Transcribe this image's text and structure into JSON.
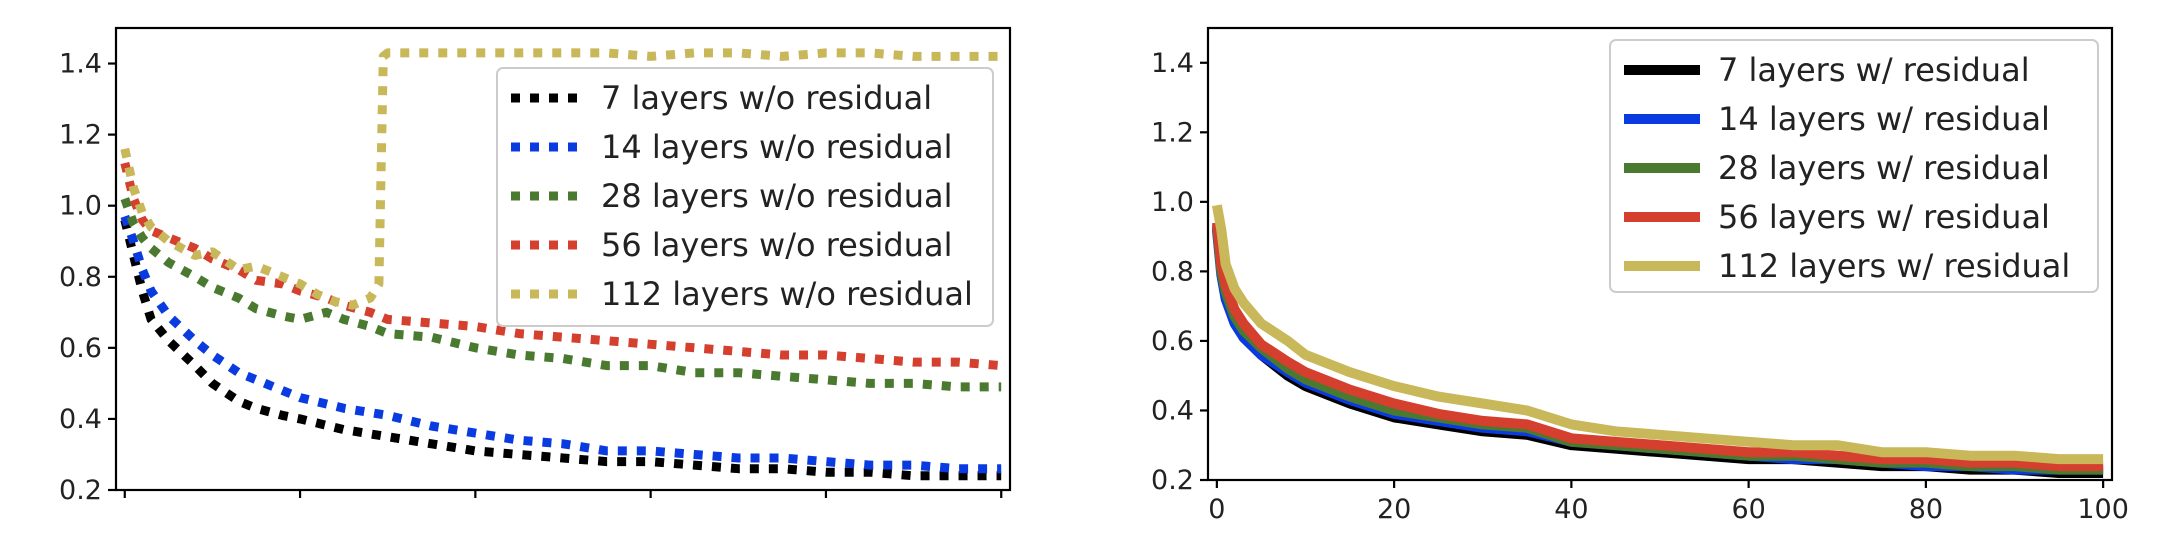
{
  "chart_data": [
    {
      "type": "line",
      "panel": "left",
      "title": "",
      "xlabel": "",
      "ylabel": "",
      "xlim": [
        -1,
        101
      ],
      "ylim": [
        0.2,
        1.5
      ],
      "yticks": [
        "0.2",
        "0.4",
        "0.6",
        "0.8",
        "1.0",
        "1.2",
        "1.4"
      ],
      "xticks_labeled": false,
      "legend_position": "upper-right",
      "line_style": "dotted",
      "series": [
        {
          "name": "7 layers w/o residual",
          "color": "#000000",
          "x": [
            0,
            1,
            2,
            3,
            5,
            8,
            10,
            13,
            15,
            18,
            20,
            25,
            30,
            35,
            40,
            45,
            50,
            55,
            60,
            65,
            70,
            75,
            80,
            85,
            90,
            95,
            100
          ],
          "y": [
            0.96,
            0.86,
            0.76,
            0.68,
            0.62,
            0.55,
            0.5,
            0.45,
            0.43,
            0.41,
            0.4,
            0.37,
            0.35,
            0.33,
            0.31,
            0.3,
            0.29,
            0.28,
            0.28,
            0.27,
            0.26,
            0.26,
            0.25,
            0.25,
            0.24,
            0.24,
            0.24
          ]
        },
        {
          "name": "14 layers w/o residual",
          "color": "#0a3be0",
          "x": [
            0,
            1,
            2,
            3,
            5,
            8,
            10,
            13,
            15,
            18,
            20,
            25,
            30,
            35,
            40,
            45,
            50,
            55,
            60,
            65,
            70,
            75,
            80,
            85,
            90,
            95,
            100
          ],
          "y": [
            0.97,
            0.9,
            0.82,
            0.76,
            0.69,
            0.62,
            0.58,
            0.53,
            0.51,
            0.48,
            0.46,
            0.43,
            0.41,
            0.38,
            0.36,
            0.34,
            0.33,
            0.31,
            0.31,
            0.3,
            0.29,
            0.29,
            0.28,
            0.27,
            0.27,
            0.26,
            0.26
          ]
        },
        {
          "name": "28 layers w/o residual",
          "color": "#4a7a30",
          "x": [
            0,
            1,
            2,
            3,
            5,
            8,
            10,
            13,
            15,
            18,
            20,
            23,
            25,
            28,
            30,
            35,
            40,
            45,
            50,
            55,
            60,
            65,
            70,
            75,
            80,
            85,
            90,
            95,
            100
          ],
          "y": [
            1.02,
            0.95,
            0.91,
            0.88,
            0.84,
            0.8,
            0.77,
            0.74,
            0.71,
            0.69,
            0.68,
            0.7,
            0.68,
            0.66,
            0.64,
            0.63,
            0.6,
            0.58,
            0.57,
            0.55,
            0.55,
            0.53,
            0.53,
            0.52,
            0.51,
            0.5,
            0.5,
            0.49,
            0.49
          ]
        },
        {
          "name": "56 layers w/o residual",
          "color": "#d43f2e",
          "x": [
            0,
            1,
            2,
            3,
            5,
            8,
            10,
            13,
            15,
            18,
            20,
            23,
            25,
            28,
            30,
            35,
            40,
            45,
            50,
            55,
            60,
            65,
            70,
            75,
            80,
            85,
            90,
            95,
            100
          ],
          "y": [
            1.12,
            1.02,
            0.96,
            0.93,
            0.91,
            0.88,
            0.85,
            0.82,
            0.79,
            0.78,
            0.76,
            0.74,
            0.72,
            0.7,
            0.68,
            0.67,
            0.66,
            0.64,
            0.63,
            0.62,
            0.61,
            0.6,
            0.59,
            0.58,
            0.58,
            0.57,
            0.56,
            0.56,
            0.55
          ]
        },
        {
          "name": "112 layers w/o residual",
          "color": "#c8b85a",
          "x": [
            0,
            1,
            2,
            3,
            5,
            8,
            10,
            13,
            15,
            18,
            20,
            22,
            24,
            26,
            28,
            29,
            29.5,
            30,
            35,
            40,
            45,
            50,
            55,
            60,
            65,
            70,
            75,
            80,
            85,
            90,
            95,
            100
          ],
          "y": [
            1.16,
            1.05,
            0.98,
            0.94,
            0.9,
            0.86,
            0.87,
            0.82,
            0.83,
            0.8,
            0.78,
            0.75,
            0.73,
            0.72,
            0.74,
            0.78,
            1.42,
            1.43,
            1.43,
            1.43,
            1.43,
            1.43,
            1.43,
            1.42,
            1.43,
            1.43,
            1.42,
            1.43,
            1.43,
            1.42,
            1.42,
            1.42
          ]
        }
      ]
    },
    {
      "type": "line",
      "panel": "right",
      "title": "",
      "xlabel": "",
      "ylabel": "",
      "xlim": [
        -1,
        101
      ],
      "ylim": [
        0.2,
        1.5
      ],
      "xticks": [
        "0",
        "20",
        "40",
        "60",
        "80",
        "100"
      ],
      "yticks": [
        "0.2",
        "0.4",
        "0.6",
        "0.8",
        "1.0",
        "1.2",
        "1.4"
      ],
      "legend_position": "upper-right",
      "line_style": "solid",
      "series": [
        {
          "name": "7 layers w/ residual",
          "color": "#000000",
          "x": [
            0,
            0.5,
            1,
            2,
            3,
            5,
            8,
            10,
            15,
            20,
            25,
            30,
            35,
            40,
            45,
            50,
            55,
            60,
            65,
            70,
            75,
            80,
            85,
            90,
            95,
            100
          ],
          "y": [
            0.93,
            0.8,
            0.73,
            0.66,
            0.61,
            0.56,
            0.5,
            0.47,
            0.42,
            0.38,
            0.36,
            0.34,
            0.33,
            0.3,
            0.29,
            0.28,
            0.27,
            0.26,
            0.26,
            0.25,
            0.24,
            0.24,
            0.23,
            0.23,
            0.22,
            0.22
          ]
        },
        {
          "name": "14 layers w/ residual",
          "color": "#0a3be0",
          "x": [
            0,
            0.5,
            1,
            2,
            3,
            5,
            8,
            10,
            15,
            20,
            25,
            30,
            35,
            40,
            45,
            50,
            55,
            60,
            65,
            70,
            75,
            80,
            85,
            90,
            95,
            100
          ],
          "y": [
            0.92,
            0.79,
            0.72,
            0.65,
            0.61,
            0.56,
            0.51,
            0.48,
            0.43,
            0.39,
            0.37,
            0.35,
            0.34,
            0.31,
            0.3,
            0.29,
            0.28,
            0.27,
            0.26,
            0.26,
            0.25,
            0.24,
            0.24,
            0.23,
            0.23,
            0.23
          ]
        },
        {
          "name": "28 layers w/ residual",
          "color": "#4a7a30",
          "x": [
            0,
            0.5,
            1,
            2,
            3,
            5,
            8,
            10,
            15,
            20,
            25,
            30,
            35,
            40,
            45,
            50,
            55,
            60,
            65,
            70,
            75,
            80,
            85,
            90,
            95,
            100
          ],
          "y": [
            0.93,
            0.8,
            0.74,
            0.67,
            0.63,
            0.58,
            0.52,
            0.49,
            0.44,
            0.4,
            0.38,
            0.36,
            0.35,
            0.31,
            0.3,
            0.29,
            0.28,
            0.27,
            0.27,
            0.26,
            0.25,
            0.25,
            0.24,
            0.24,
            0.23,
            0.23
          ]
        },
        {
          "name": "56 layers w/ residual",
          "color": "#d43f2e",
          "x": [
            0,
            0.5,
            1,
            2,
            3,
            5,
            8,
            10,
            15,
            20,
            25,
            30,
            35,
            40,
            45,
            50,
            55,
            60,
            65,
            70,
            75,
            80,
            85,
            90,
            95,
            100
          ],
          "y": [
            0.94,
            0.82,
            0.76,
            0.69,
            0.65,
            0.59,
            0.54,
            0.51,
            0.46,
            0.42,
            0.39,
            0.37,
            0.36,
            0.32,
            0.31,
            0.3,
            0.29,
            0.28,
            0.28,
            0.27,
            0.26,
            0.26,
            0.25,
            0.25,
            0.24,
            0.24
          ]
        },
        {
          "name": "112 layers w/ residual",
          "color": "#c8b85a",
          "x": [
            0,
            0.5,
            1,
            2,
            3,
            5,
            8,
            10,
            15,
            20,
            25,
            30,
            35,
            40,
            45,
            50,
            55,
            60,
            65,
            70,
            75,
            80,
            85,
            90,
            95,
            100
          ],
          "y": [
            0.99,
            0.92,
            0.82,
            0.75,
            0.71,
            0.65,
            0.6,
            0.56,
            0.51,
            0.47,
            0.44,
            0.42,
            0.4,
            0.36,
            0.34,
            0.33,
            0.32,
            0.31,
            0.3,
            0.3,
            0.28,
            0.28,
            0.27,
            0.27,
            0.26,
            0.26
          ]
        }
      ]
    }
  ]
}
